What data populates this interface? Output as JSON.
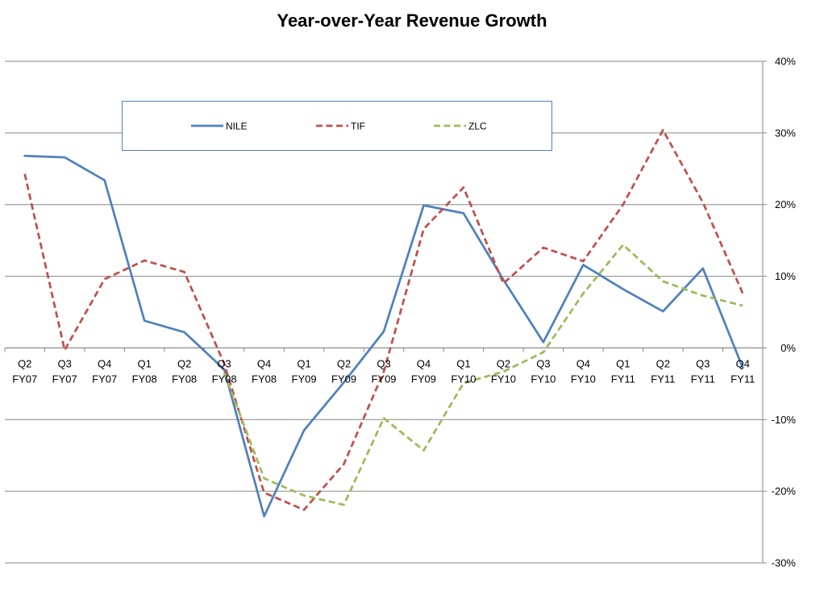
{
  "chart_data": {
    "type": "line",
    "title": "Year-over-Year Revenue Growth",
    "xlabel": "",
    "ylabel": "",
    "categories": [
      [
        "Q2",
        "FY07"
      ],
      [
        "Q3",
        "FY07"
      ],
      [
        "Q4",
        "FY07"
      ],
      [
        "Q1",
        "FY08"
      ],
      [
        "Q2",
        "FY08"
      ],
      [
        "Q3",
        "FY08"
      ],
      [
        "Q4",
        "FY08"
      ],
      [
        "Q1",
        "FY09"
      ],
      [
        "Q2",
        "FY09"
      ],
      [
        "Q3",
        "FY09"
      ],
      [
        "Q4",
        "FY09"
      ],
      [
        "Q1",
        "FY10"
      ],
      [
        "Q2",
        "FY10"
      ],
      [
        "Q3",
        "FY10"
      ],
      [
        "Q4",
        "FY10"
      ],
      [
        "Q1",
        "FY11"
      ],
      [
        "Q2",
        "FY11"
      ],
      [
        "Q3",
        "FY11"
      ],
      [
        "Q4",
        "FY11"
      ]
    ],
    "y_ticks": [
      40,
      30,
      20,
      10,
      0,
      -10,
      -20,
      -30
    ],
    "y_tick_labels": [
      "40%",
      "30%",
      "20%",
      "10%",
      "0%",
      "-10%",
      "-20%",
      "-30%"
    ],
    "ylim": [
      -30,
      40
    ],
    "y_axis_position": "right",
    "grid": true,
    "legend_position": "top-left",
    "series": [
      {
        "name": "NILE",
        "color": "#4f81bd",
        "dash": "solid",
        "values": [
          26.8,
          26.6,
          23.4,
          3.8,
          2.2,
          -3.0,
          -23.5,
          -11.5,
          -4.8,
          2.3,
          19.9,
          18.8,
          9.5,
          0.8,
          11.6,
          8.2,
          5.1,
          11.1,
          -2.8
        ]
      },
      {
        "name": "TIF",
        "color": "#c0504d",
        "dash": "dashed",
        "values": [
          24.3,
          -0.3,
          9.6,
          12.2,
          10.6,
          -2.2,
          -20.2,
          -22.6,
          -16.2,
          -3.3,
          16.6,
          22.4,
          9.0,
          14.0,
          12.1,
          20.0,
          30.4,
          20.3,
          7.6
        ]
      },
      {
        "name": "ZLC",
        "color": "#9bbb59",
        "dash": "dashed",
        "values": [
          null,
          null,
          null,
          null,
          null,
          -3.5,
          -18.2,
          -20.6,
          -21.9,
          -9.8,
          -14.3,
          -4.9,
          -3.3,
          -0.6,
          7.6,
          14.4,
          9.3,
          7.3,
          5.9
        ]
      }
    ]
  }
}
